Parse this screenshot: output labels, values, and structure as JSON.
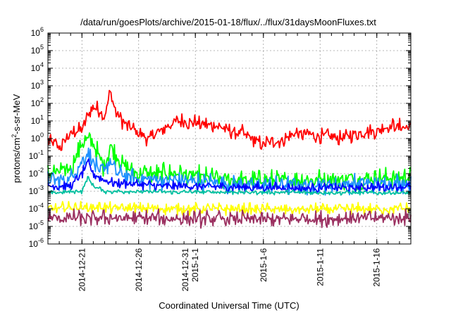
{
  "chart_data": {
    "type": "line",
    "title": "/data/run/goesPlots/archive/2015-01-18/flux/../flux/31daysMoonFluxes.txt",
    "xlabel": "Coordinated Universal Time (UTC)",
    "ylabel": {
      "base": "protons/cm",
      "exp": "2",
      "rest": "-s-sr-MeV"
    },
    "yscale": "log",
    "ylim": [
      1e-06,
      1000000.0
    ],
    "xlim": [
      "2014-12-18",
      "2015-01-19"
    ],
    "grid": true,
    "y_ticks": [
      {
        "base": "10",
        "exp": "6"
      },
      {
        "base": "10",
        "exp": "5"
      },
      {
        "base": "10",
        "exp": "4"
      },
      {
        "base": "10",
        "exp": "3"
      },
      {
        "base": "10",
        "exp": "2"
      },
      {
        "base": "10",
        "exp": "1"
      },
      {
        "base": "10",
        "exp": "0"
      },
      {
        "base": "10",
        "exp": "-1"
      },
      {
        "base": "10",
        "exp": "-2"
      },
      {
        "base": "10",
        "exp": "-3"
      },
      {
        "base": "10",
        "exp": "-4"
      },
      {
        "base": "10",
        "exp": "-5"
      },
      {
        "base": "10",
        "exp": "-6"
      }
    ],
    "x_ticks": [
      {
        "date": "2014-12-21",
        "lines": [
          "2014-12-21"
        ]
      },
      {
        "date": "2014-12-26",
        "lines": [
          "2014-12-26"
        ]
      },
      {
        "date": "2014-12-31",
        "lines": [
          "2014-12-31",
          "2015-1-1"
        ]
      },
      {
        "date": "2015-01-06",
        "lines": [
          "2015-1-6"
        ]
      },
      {
        "date": "2015-01-11",
        "lines": [
          "2015-1-11"
        ]
      },
      {
        "date": "2015-01-16",
        "lines": [
          "2015-1-16"
        ]
      }
    ],
    "series": [
      {
        "color": "#ff0000",
        "noise": 0.55,
        "points": [
          [
            "2014-12-18",
            0.8
          ],
          [
            "2014-12-19",
            0.3
          ],
          [
            "2014-12-20",
            2
          ],
          [
            "2014-12-21",
            3
          ],
          [
            "2014-12-21T12",
            20
          ],
          [
            "2014-12-22",
            60
          ],
          [
            "2014-12-22T12",
            40
          ],
          [
            "2014-12-23",
            20
          ],
          [
            "2014-12-23T12",
            400
          ],
          [
            "2014-12-24",
            30
          ],
          [
            "2014-12-25",
            5
          ],
          [
            "2014-12-26",
            2
          ],
          [
            "2014-12-27",
            1
          ],
          [
            "2014-12-28",
            3
          ],
          [
            "2014-12-29",
            8
          ],
          [
            "2014-12-30",
            10
          ],
          [
            "2014-12-31",
            8
          ],
          [
            "2015-01-02",
            5
          ],
          [
            "2015-01-03",
            3
          ],
          [
            "2015-01-04",
            2
          ],
          [
            "2015-01-05",
            1
          ],
          [
            "2015-01-06",
            0.5
          ],
          [
            "2015-01-07",
            0.6
          ],
          [
            "2015-01-09",
            2
          ],
          [
            "2015-01-11",
            1.5
          ],
          [
            "2015-01-13",
            1
          ],
          [
            "2015-01-14",
            2
          ],
          [
            "2015-01-16",
            3
          ],
          [
            "2015-01-17",
            5
          ],
          [
            "2015-01-19",
            4
          ]
        ]
      },
      {
        "color": "#00ff00",
        "noise": 0.7,
        "points": [
          [
            "2014-12-18",
            0.01
          ],
          [
            "2014-12-20",
            0.02
          ],
          [
            "2014-12-21",
            0.5
          ],
          [
            "2014-12-21T12",
            1
          ],
          [
            "2014-12-22",
            0.5
          ],
          [
            "2014-12-22T12",
            0.1
          ],
          [
            "2014-12-23",
            0.02
          ],
          [
            "2014-12-23T12",
            0.5
          ],
          [
            "2014-12-24",
            0.1
          ],
          [
            "2014-12-25",
            0.02
          ],
          [
            "2014-12-26",
            0.01
          ],
          [
            "2014-12-30",
            0.01
          ],
          [
            "2015-01-02",
            0.005
          ],
          [
            "2015-01-07",
            0.004
          ],
          [
            "2015-01-12",
            0.005
          ],
          [
            "2015-01-19",
            0.006
          ]
        ]
      },
      {
        "color": "#1e90ff",
        "noise": 0.65,
        "points": [
          [
            "2014-12-18",
            0.004
          ],
          [
            "2014-12-20",
            0.005
          ],
          [
            "2014-12-21",
            0.05
          ],
          [
            "2014-12-21T12",
            0.15
          ],
          [
            "2014-12-22",
            0.05
          ],
          [
            "2014-12-22T12",
            0.01
          ],
          [
            "2014-12-23T12",
            0.05
          ],
          [
            "2014-12-24",
            0.01
          ],
          [
            "2014-12-26",
            0.005
          ],
          [
            "2014-12-30",
            0.004
          ],
          [
            "2015-01-05",
            0.002
          ],
          [
            "2015-01-10",
            0.0025
          ],
          [
            "2015-01-19",
            0.003
          ]
        ]
      },
      {
        "color": "#0000ff",
        "noise": 0.35,
        "points": [
          [
            "2014-12-18",
            0.002
          ],
          [
            "2014-12-20",
            0.002
          ],
          [
            "2014-12-21",
            0.01
          ],
          [
            "2014-12-21T12",
            0.04
          ],
          [
            "2014-12-22",
            0.01
          ],
          [
            "2014-12-23",
            0.004
          ],
          [
            "2014-12-24",
            0.003
          ],
          [
            "2014-12-28",
            0.002
          ],
          [
            "2015-01-02",
            0.0018
          ],
          [
            "2015-01-10",
            0.0015
          ],
          [
            "2015-01-19",
            0.0018
          ]
        ]
      },
      {
        "color": "#00c0a0",
        "noise": 0.15,
        "points": [
          [
            "2014-12-18",
            0.0008
          ],
          [
            "2014-12-21",
            0.001
          ],
          [
            "2014-12-21T12",
            0.006
          ],
          [
            "2014-12-22",
            0.002
          ],
          [
            "2014-12-23",
            0.001
          ],
          [
            "2014-12-30",
            0.0009
          ],
          [
            "2015-01-19",
            0.0008
          ]
        ]
      },
      {
        "color": "#ffff00",
        "noise": 0.4,
        "points": [
          [
            "2014-12-18",
            0.0001
          ],
          [
            "2014-12-22",
            0.00012
          ],
          [
            "2014-12-30",
            0.0001
          ],
          [
            "2015-01-08",
            9e-05
          ],
          [
            "2015-01-19",
            0.0001
          ]
        ]
      },
      {
        "color": "#9b3060",
        "noise": 0.55,
        "points": [
          [
            "2014-12-18",
            3e-05
          ],
          [
            "2014-12-25",
            3e-05
          ],
          [
            "2015-01-05",
            2.5e-05
          ],
          [
            "2015-01-19",
            3e-05
          ]
        ]
      }
    ]
  }
}
